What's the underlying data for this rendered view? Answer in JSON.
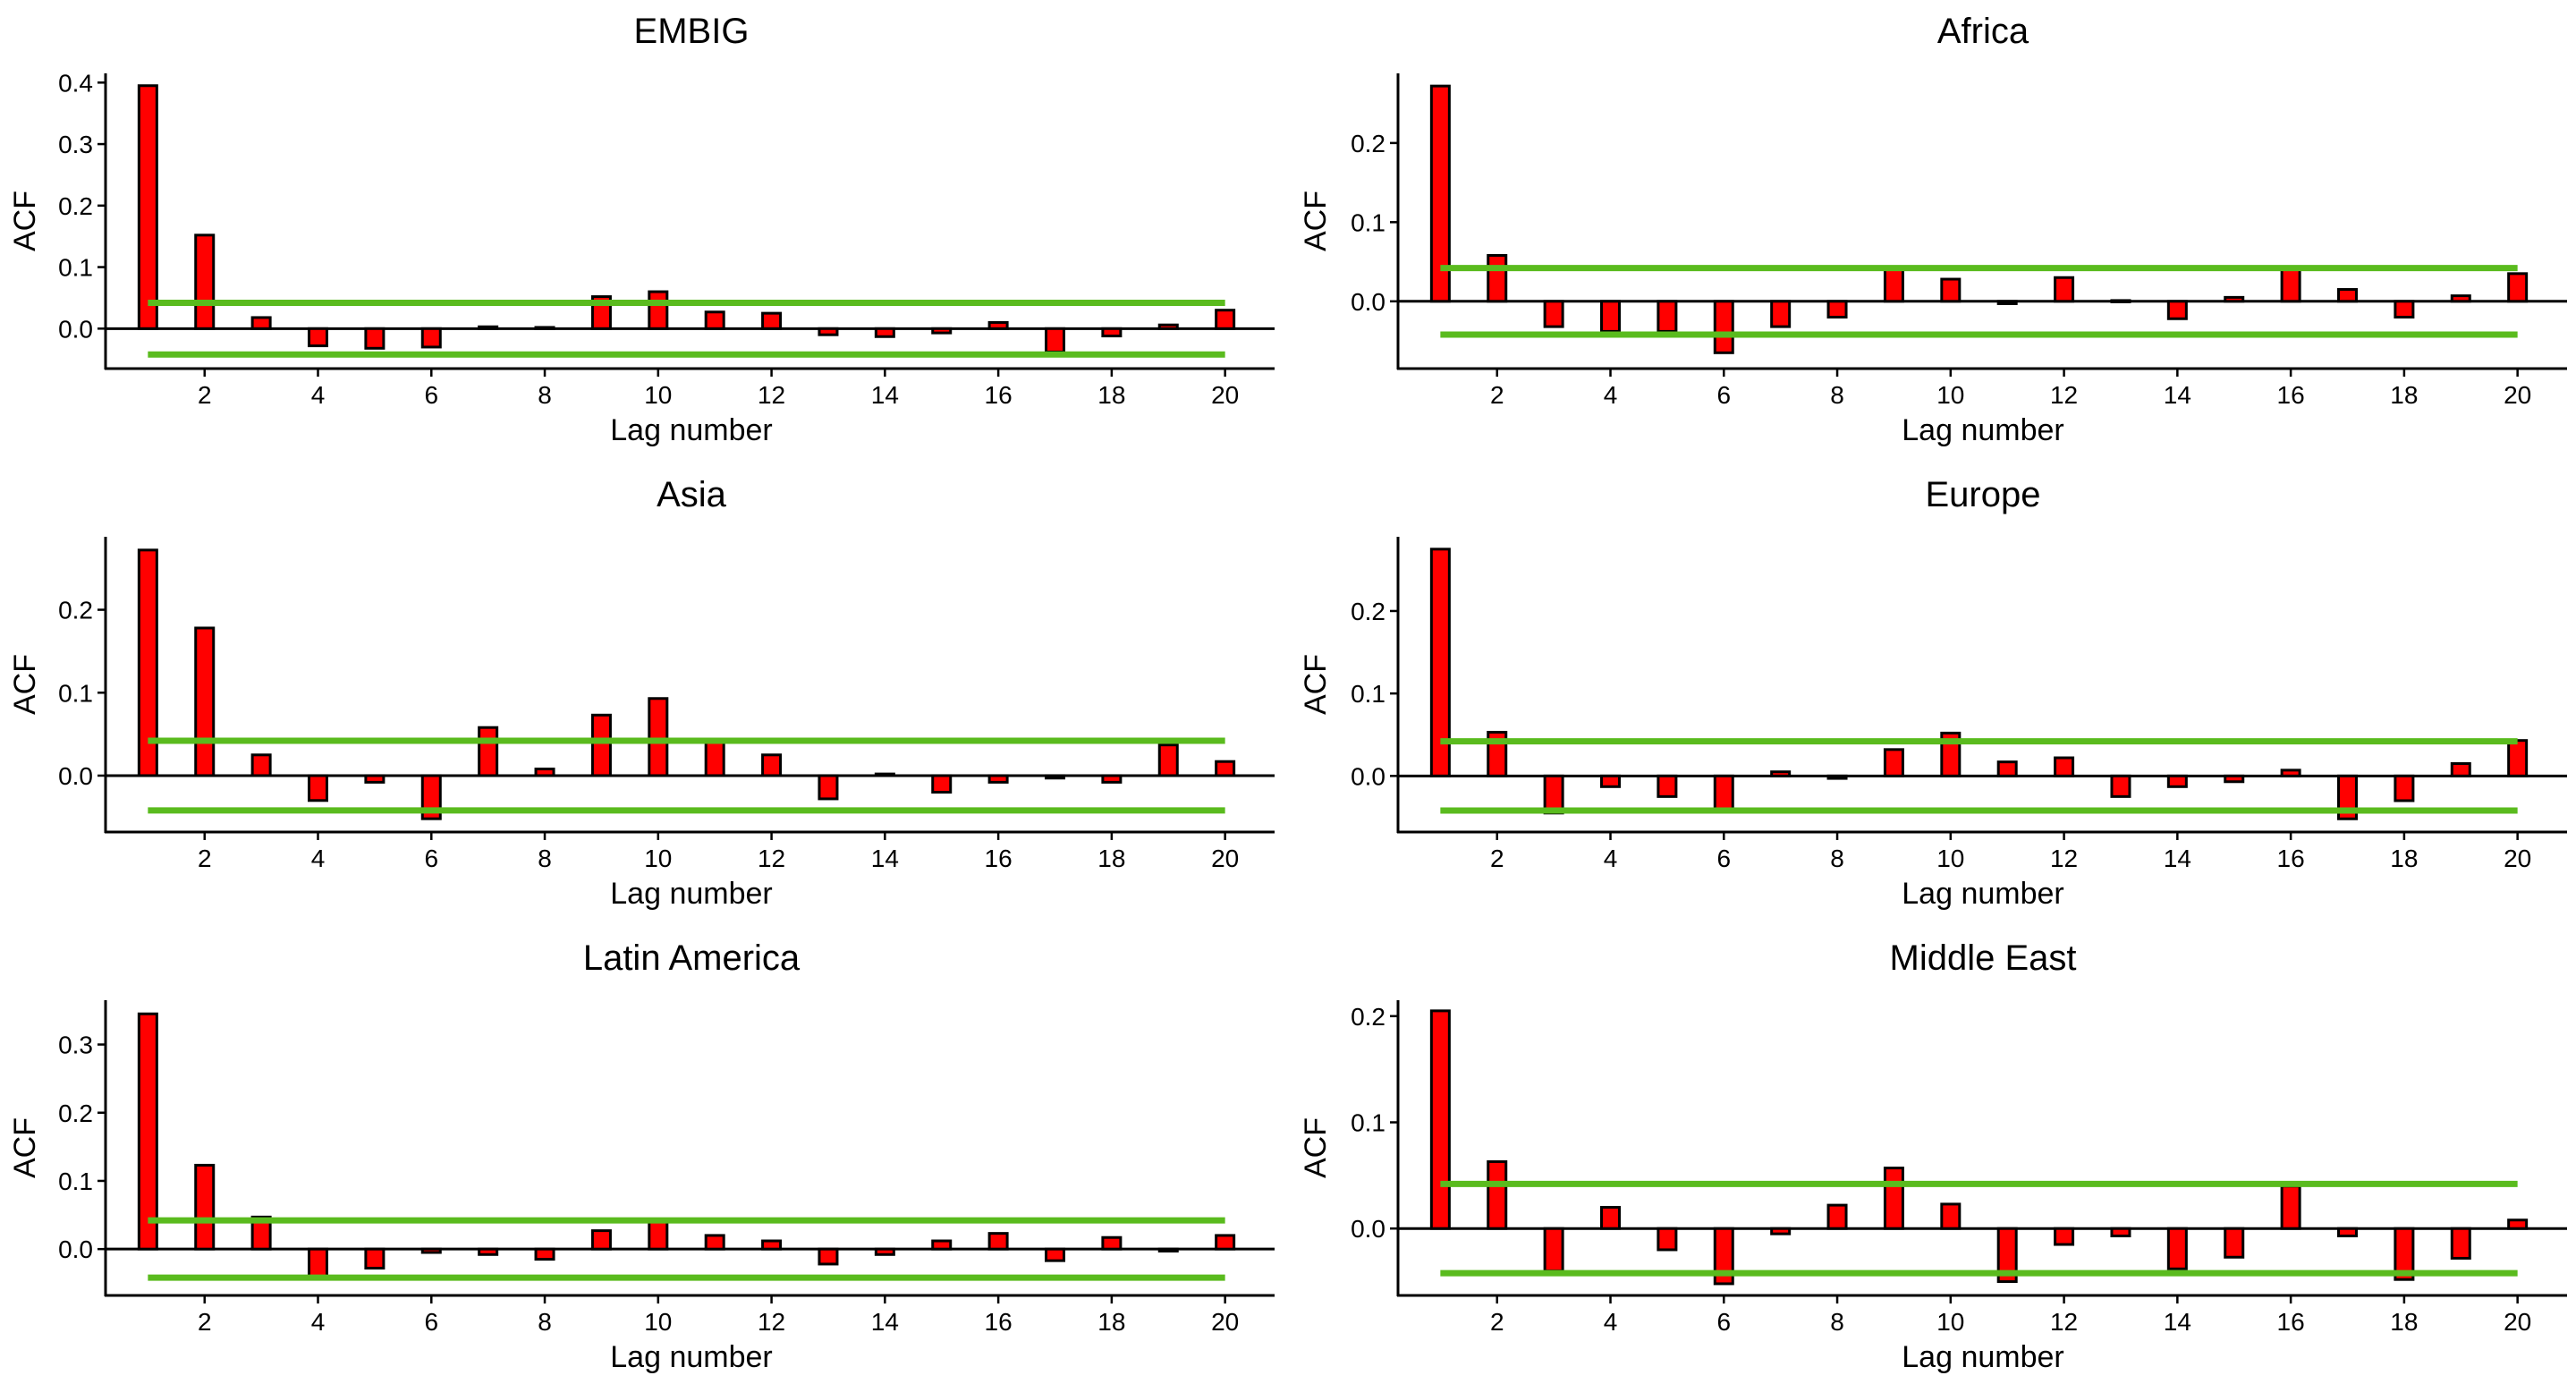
{
  "colors": {
    "bar_fill": "#ff0000",
    "bar_stroke": "#000000",
    "conf_line": "#5abb1e",
    "axis": "#000000"
  },
  "chart_data": [
    {
      "type": "bar",
      "title": "EMBIG",
      "xlabel": "Lag number",
      "ylabel": "ACF",
      "x": [
        1,
        2,
        3,
        4,
        5,
        6,
        7,
        8,
        9,
        10,
        11,
        12,
        13,
        14,
        15,
        16,
        17,
        18,
        19,
        20
      ],
      "values": [
        0.395,
        0.152,
        0.018,
        -0.028,
        -0.032,
        -0.03,
        0.003,
        0.002,
        0.052,
        0.06,
        0.027,
        0.025,
        -0.01,
        -0.013,
        -0.007,
        0.01,
        -0.038,
        -0.012,
        0.006,
        0.03
      ],
      "conf_limits": [
        0.042,
        -0.042
      ],
      "xlim": [
        0.6,
        20.4
      ],
      "ylim": [
        -0.065,
        0.415
      ],
      "xticks": [
        2,
        4,
        6,
        8,
        10,
        12,
        14,
        16,
        18,
        20
      ],
      "yticks": [
        0.0,
        0.1,
        0.2,
        0.3,
        0.4
      ],
      "ytick_labels": [
        "0.0",
        "0.1",
        "0.2",
        "0.3",
        "0.4"
      ]
    },
    {
      "type": "bar",
      "title": "Africa",
      "xlabel": "Lag number",
      "ylabel": "ACF",
      "x": [
        1,
        2,
        3,
        4,
        5,
        6,
        7,
        8,
        9,
        10,
        11,
        12,
        13,
        14,
        15,
        16,
        17,
        18,
        19,
        20
      ],
      "values": [
        0.272,
        0.058,
        -0.032,
        -0.038,
        -0.038,
        -0.065,
        -0.032,
        -0.02,
        0.04,
        0.028,
        -0.003,
        0.03,
        0.001,
        -0.022,
        0.005,
        0.04,
        0.015,
        -0.02,
        0.007,
        0.035
      ],
      "conf_limits": [
        0.042,
        -0.042
      ],
      "xlim": [
        0.6,
        20.4
      ],
      "ylim": [
        -0.085,
        0.288
      ],
      "xticks": [
        2,
        4,
        6,
        8,
        10,
        12,
        14,
        16,
        18,
        20
      ],
      "yticks": [
        0.0,
        0.1,
        0.2
      ],
      "ytick_labels": [
        "0.0",
        "0.1",
        "0.2"
      ]
    },
    {
      "type": "bar",
      "title": "Asia",
      "xlabel": "Lag number",
      "ylabel": "ACF",
      "x": [
        1,
        2,
        3,
        4,
        5,
        6,
        7,
        8,
        9,
        10,
        11,
        12,
        13,
        14,
        15,
        16,
        17,
        18,
        19,
        20
      ],
      "values": [
        0.272,
        0.178,
        0.025,
        -0.03,
        -0.008,
        -0.052,
        0.058,
        0.008,
        0.073,
        0.093,
        0.043,
        0.025,
        -0.028,
        0.002,
        -0.02,
        -0.008,
        -0.003,
        -0.008,
        0.037,
        0.017
      ],
      "conf_limits": [
        0.042,
        -0.042
      ],
      "xlim": [
        0.6,
        20.4
      ],
      "ylim": [
        -0.068,
        0.288
      ],
      "xticks": [
        2,
        4,
        6,
        8,
        10,
        12,
        14,
        16,
        18,
        20
      ],
      "yticks": [
        0.0,
        0.1,
        0.2
      ],
      "ytick_labels": [
        "0.0",
        "0.1",
        "0.2"
      ]
    },
    {
      "type": "bar",
      "title": "Europe",
      "xlabel": "Lag number",
      "ylabel": "ACF",
      "x": [
        1,
        2,
        3,
        4,
        5,
        6,
        7,
        8,
        9,
        10,
        11,
        12,
        13,
        14,
        15,
        16,
        17,
        18,
        19,
        20
      ],
      "values": [
        0.275,
        0.053,
        -0.045,
        -0.013,
        -0.025,
        -0.04,
        0.005,
        -0.003,
        0.032,
        0.052,
        0.017,
        0.022,
        -0.025,
        -0.013,
        -0.007,
        0.007,
        -0.052,
        -0.03,
        0.015,
        0.043
      ],
      "conf_limits": [
        0.042,
        -0.042
      ],
      "xlim": [
        0.6,
        20.4
      ],
      "ylim": [
        -0.068,
        0.29
      ],
      "xticks": [
        2,
        4,
        6,
        8,
        10,
        12,
        14,
        16,
        18,
        20
      ],
      "yticks": [
        0.0,
        0.1,
        0.2
      ],
      "ytick_labels": [
        "0.0",
        "0.1",
        "0.2"
      ]
    },
    {
      "type": "bar",
      "title": "Latin America",
      "xlabel": "Lag number",
      "ylabel": "ACF",
      "x": [
        1,
        2,
        3,
        4,
        5,
        6,
        7,
        8,
        9,
        10,
        11,
        12,
        13,
        14,
        15,
        16,
        17,
        18,
        19,
        20
      ],
      "values": [
        0.345,
        0.123,
        0.047,
        -0.04,
        -0.028,
        -0.005,
        -0.008,
        -0.015,
        0.027,
        0.042,
        0.02,
        0.012,
        -0.022,
        -0.008,
        0.012,
        0.023,
        -0.017,
        0.017,
        -0.003,
        0.02
      ],
      "conf_limits": [
        0.042,
        -0.042
      ],
      "xlim": [
        0.6,
        20.4
      ],
      "ylim": [
        -0.068,
        0.365
      ],
      "xticks": [
        2,
        4,
        6,
        8,
        10,
        12,
        14,
        16,
        18,
        20
      ],
      "yticks": [
        0.0,
        0.1,
        0.2,
        0.3
      ],
      "ytick_labels": [
        "0.0",
        "0.1",
        "0.2",
        "0.3"
      ]
    },
    {
      "type": "bar",
      "title": "Middle East",
      "xlabel": "Lag number",
      "ylabel": "ACF",
      "x": [
        1,
        2,
        3,
        4,
        5,
        6,
        7,
        8,
        9,
        10,
        11,
        12,
        13,
        14,
        15,
        16,
        17,
        18,
        19,
        20
      ],
      "values": [
        0.205,
        0.063,
        -0.04,
        0.02,
        -0.02,
        -0.052,
        -0.005,
        0.022,
        0.057,
        0.023,
        -0.05,
        -0.015,
        -0.007,
        -0.038,
        -0.027,
        0.04,
        -0.007,
        -0.048,
        -0.028,
        0.008
      ],
      "conf_limits": [
        0.042,
        -0.042
      ],
      "xlim": [
        0.6,
        20.4
      ],
      "ylim": [
        -0.063,
        0.215
      ],
      "xticks": [
        2,
        4,
        6,
        8,
        10,
        12,
        14,
        16,
        18,
        20
      ],
      "yticks": [
        0.0,
        0.1,
        0.2
      ],
      "ytick_labels": [
        "0.0",
        "0.1",
        "0.2"
      ]
    }
  ]
}
